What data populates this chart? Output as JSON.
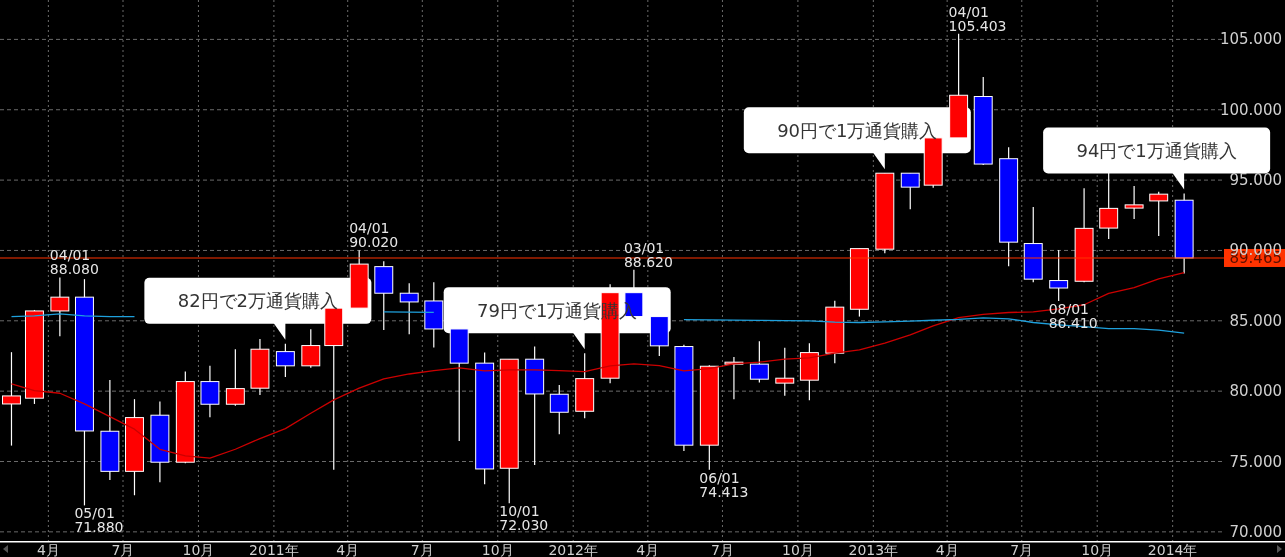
{
  "chart_data": {
    "type": "candlestick",
    "x": [
      "2010-02-15",
      "2010-03-15",
      "2010-04-15",
      "2010-05-15",
      "2010-06-15",
      "2010-07-15",
      "2010-08-15",
      "2010-09-15",
      "2010-10-15",
      "2010-11-15",
      "2010-12-15",
      "2011-01-15",
      "2011-02-15",
      "2011-03-15",
      "2011-04-15",
      "2011-05-15",
      "2011-06-15",
      "2011-07-15",
      "2011-08-15",
      "2011-09-15",
      "2011-10-15",
      "2011-11-15",
      "2011-12-15",
      "2012-01-15",
      "2012-02-15",
      "2012-03-15",
      "2012-04-15",
      "2012-05-15",
      "2012-06-15",
      "2012-07-15",
      "2012-08-15",
      "2012-09-15",
      "2012-10-15",
      "2012-11-15",
      "2012-12-15",
      "2013-01-15",
      "2013-02-15",
      "2013-03-15",
      "2013-04-15",
      "2013-05-15",
      "2013-06-15",
      "2013-07-15",
      "2013-08-15",
      "2013-09-15",
      "2013-10-15",
      "2013-11-15",
      "2013-12-15",
      "2014-01-15"
    ],
    "ohlc": [
      [
        79.09,
        82.77,
        76.13,
        79.66
      ],
      [
        79.5,
        85.77,
        79.09,
        85.7
      ],
      [
        85.7,
        88.08,
        83.9,
        86.68
      ],
      [
        86.68,
        87.96,
        71.88,
        77.17
      ],
      [
        77.15,
        80.8,
        73.69,
        74.3
      ],
      [
        74.3,
        79.43,
        72.6,
        78.12
      ],
      [
        78.29,
        79.26,
        73.53,
        74.95
      ],
      [
        74.95,
        81.39,
        74.88,
        80.68
      ],
      [
        80.68,
        81.8,
        78.15,
        79.07
      ],
      [
        79.07,
        82.98,
        78.97,
        80.18
      ],
      [
        80.21,
        83.71,
        79.73,
        82.98
      ],
      [
        82.81,
        83.36,
        81.0,
        81.8
      ],
      [
        81.8,
        84.4,
        81.67,
        83.24
      ],
      [
        83.24,
        85.9,
        74.41,
        85.9
      ],
      [
        85.9,
        90.02,
        85.9,
        89.03
      ],
      [
        88.85,
        89.24,
        84.35,
        86.96
      ],
      [
        86.96,
        87.67,
        84.05,
        86.34
      ],
      [
        86.41,
        87.74,
        83.1,
        84.42
      ],
      [
        84.42,
        84.42,
        76.46,
        81.99
      ],
      [
        81.99,
        82.74,
        73.39,
        74.47
      ],
      [
        74.52,
        82.27,
        72.03,
        82.27
      ],
      [
        82.27,
        83.17,
        74.76,
        79.8
      ],
      [
        79.78,
        80.44,
        76.94,
        78.5
      ],
      [
        78.57,
        82.7,
        78.08,
        80.89
      ],
      [
        80.92,
        87.6,
        80.57,
        87.0
      ],
      [
        87.0,
        88.62,
        85.3,
        85.3
      ],
      [
        85.3,
        85.3,
        82.5,
        83.22
      ],
      [
        83.17,
        83.29,
        75.75,
        76.16
      ],
      [
        76.16,
        81.84,
        74.413,
        81.77
      ],
      [
        81.92,
        82.43,
        79.43,
        82.06
      ],
      [
        81.92,
        83.55,
        80.61,
        80.85
      ],
      [
        80.57,
        83.08,
        79.67,
        80.92
      ],
      [
        80.78,
        83.41,
        79.36,
        82.74
      ],
      [
        82.7,
        86.43,
        81.99,
        85.97
      ],
      [
        85.82,
        90.13,
        85.3,
        90.13
      ],
      [
        90.09,
        95.49,
        89.8,
        95.49
      ],
      [
        95.49,
        95.49,
        92.93,
        94.5
      ],
      [
        94.64,
        98.0,
        94.45,
        98.0
      ],
      [
        98.0,
        105.403,
        98.0,
        101.03
      ],
      [
        100.94,
        102.33,
        96.07,
        96.14
      ],
      [
        96.52,
        97.33,
        88.87,
        90.59
      ],
      [
        90.49,
        93.09,
        87.74,
        87.96
      ],
      [
        87.86,
        90.03,
        86.41,
        87.33
      ],
      [
        87.81,
        94.42,
        87.74,
        91.57
      ],
      [
        91.59,
        95.59,
        90.81,
        92.99
      ],
      [
        93.01,
        94.58,
        92.23,
        93.24
      ],
      [
        93.52,
        94.18,
        91.02,
        94.0
      ],
      [
        93.57,
        94.05,
        88.37,
        89.465
      ]
    ],
    "colors": [
      "#ff0000",
      "#ff0000",
      "#ff0000",
      "#0000ff",
      "#0000ff",
      "#ff0000",
      "#0000ff",
      "#ff0000",
      "#0000ff",
      "#ff0000",
      "#ff0000",
      "#0000ff",
      "#ff0000",
      "#ff0000",
      "#ff0000",
      "#0000ff",
      "#0000ff",
      "#0000ff",
      "#0000ff",
      "#0000ff",
      "#ff0000",
      "#0000ff",
      "#0000ff",
      "#ff0000",
      "#ff0000",
      "#0000ff",
      "#0000ff",
      "#0000ff",
      "#ff0000",
      "#ff0000",
      "#0000ff",
      "#ff0000",
      "#ff0000",
      "#ff0000",
      "#ff0000",
      "#ff0000",
      "#0000ff",
      "#ff0000",
      "#ff0000",
      "#0000ff",
      "#0000ff",
      "#0000ff",
      "#0000ff",
      "#ff0000",
      "#ff0000",
      "#ff0000",
      "#ff0000",
      "#0000ff"
    ],
    "series": [
      {
        "type": "line",
        "color": "#cc0000",
        "values": [
          80.51,
          80.04,
          79.85,
          79.09,
          78.19,
          77.3,
          75.87,
          75.4,
          75.24,
          75.87,
          76.63,
          77.34,
          78.43,
          79.38,
          80.21,
          80.87,
          81.22,
          81.46,
          81.65,
          81.44,
          81.51,
          81.51,
          81.46,
          81.39,
          81.79,
          81.94,
          81.82,
          81.44,
          81.6,
          81.94,
          82.06,
          82.27,
          82.36,
          82.7,
          82.93,
          83.41,
          84.0,
          84.64,
          85.23,
          85.46,
          85.59,
          85.64,
          85.85,
          86.14,
          86.95,
          87.36,
          87.98,
          88.42
        ]
      },
      {
        "type": "line",
        "color": "#1ea0dc",
        "values": [
          85.3,
          85.35,
          85.49,
          85.35,
          85.3,
          85.3,
          null,
          null,
          null,
          null,
          null,
          null,
          null,
          null,
          null,
          85.63,
          85.62,
          85.6,
          null,
          null,
          null,
          null,
          null,
          null,
          null,
          null,
          null,
          85.08,
          85.06,
          85.05,
          85.03,
          85.01,
          85.0,
          84.9,
          84.88,
          84.92,
          84.98,
          85.04,
          85.1,
          85.21,
          85.14,
          84.88,
          84.71,
          84.58,
          84.45,
          84.45,
          84.33,
          84.13
        ]
      }
    ],
    "xlim": [
      "2010-02-01",
      "2014-05-18"
    ],
    "ylim": [
      69.3,
      107.8
    ],
    "xticks": [
      {
        "value": "2010-04",
        "label": "4月"
      },
      {
        "value": "2010-07",
        "label": "7月"
      },
      {
        "value": "2010-10",
        "label": "10月"
      },
      {
        "value": "2011-01",
        "label": "2011年"
      },
      {
        "value": "2011-04",
        "label": "4月"
      },
      {
        "value": "2011-07",
        "label": "7月"
      },
      {
        "value": "2011-10",
        "label": "10月"
      },
      {
        "value": "2012-01",
        "label": "2012年"
      },
      {
        "value": "2012-04",
        "label": "4月"
      },
      {
        "value": "2012-07",
        "label": "7月"
      },
      {
        "value": "2012-10",
        "label": "10月"
      },
      {
        "value": "2013-01",
        "label": "2013年"
      },
      {
        "value": "2013-04",
        "label": "4月"
      },
      {
        "value": "2013-07",
        "label": "7月"
      },
      {
        "value": "2013-10",
        "label": "10月"
      },
      {
        "value": "2014-01",
        "label": "2014年"
      }
    ],
    "yticks": [
      {
        "value": 70,
        "label": "70.000"
      },
      {
        "value": 75,
        "label": "75.000"
      },
      {
        "value": 80,
        "label": "80.000"
      },
      {
        "value": 85,
        "label": "85.000"
      },
      {
        "value": 90,
        "label": "90.000"
      },
      {
        "value": 95,
        "label": "95.000"
      },
      {
        "value": 100,
        "label": "100.000"
      },
      {
        "value": 105,
        "label": "105.000"
      }
    ],
    "grid": true,
    "ref_lines": [
      {
        "axis": "y",
        "value": 89.465,
        "label": "89.465",
        "color": "#ff3300"
      }
    ],
    "annotations": [
      {
        "text": "04/01\n88.080",
        "x": "2010-04-15",
        "y": 88.08
      },
      {
        "text": "05/01\n71.880",
        "x": "2010-05-15",
        "y": 71.88
      },
      {
        "text": "04/01\n90.020",
        "x": "2011-04-15",
        "y": 90.02
      },
      {
        "text": "10/01\n72.030",
        "x": "2011-10-15",
        "y": 72.03
      },
      {
        "text": "03/01\n88.620",
        "x": "2012-03-15",
        "y": 88.62
      },
      {
        "text": "06/01\n74.413",
        "x": "2012-06-15",
        "y": 74.413
      },
      {
        "text": "04/01\n105.403",
        "x": "2013-04-15",
        "y": 105.403
      },
      {
        "text": "08/01\n86.410",
        "x": "2013-08-15",
        "y": 86.41
      },
      {
        "text": "82円で2万通貨購入",
        "x": "2011-01-15",
        "y": 83.36
      },
      {
        "text": "79円で1万通貨購入",
        "x": "2012-01-15",
        "y": 82.7
      },
      {
        "text": "90円で1万通貨購入",
        "x": "2013-01-15",
        "y": 95.49
      },
      {
        "text": "94円で1万通貨購入",
        "x": "2014-01-15",
        "y": 94.05
      }
    ]
  }
}
